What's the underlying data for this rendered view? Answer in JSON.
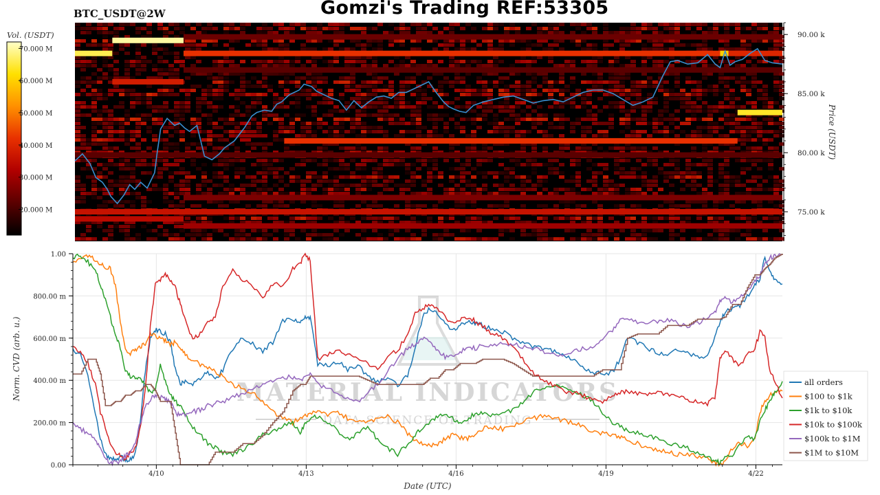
{
  "header": {
    "pair": "BTC_USDT@2W",
    "title": "Gomzi's Trading REF:53305"
  },
  "colors": {
    "background": "#ffffff",
    "heatmap_bg": "#000000",
    "price_line": "#3a8fd0",
    "grid": "#e6e6e6"
  },
  "chart_data": [
    {
      "type": "heatmap",
      "name": "order-book-heatmap",
      "ylabel": "Price (USDT)",
      "yticks": [
        "75.00 k",
        "80.00 k",
        "85.00 k",
        "90.00 k"
      ],
      "ylim": [
        72500,
        91000
      ],
      "xlim": [
        0,
        14.2
      ],
      "colorbar": {
        "label": "Vol. (USDT)",
        "ticks": [
          "20.000 M",
          "30.000 M",
          "40.000 M",
          "50.000 M",
          "60.000 M",
          "70.000 M"
        ],
        "range_millions": [
          12,
          72
        ],
        "colors": [
          "#000000",
          "#5a0000",
          "#b00000",
          "#e83000",
          "#ff9000",
          "#ffe000",
          "#ffffc8"
        ]
      },
      "walls": [
        {
          "price": 88400,
          "x0": 0.0,
          "x1": 0.75,
          "vol": 66
        },
        {
          "price": 89500,
          "x0": 0.75,
          "x1": 2.18,
          "vol": 70
        },
        {
          "price": 88400,
          "x0": 2.18,
          "x1": 12.95,
          "vol": 42
        },
        {
          "price": 88400,
          "x0": 12.95,
          "x1": 13.12,
          "vol": 60
        },
        {
          "price": 88400,
          "x0": 13.12,
          "x1": 14.2,
          "vol": 40
        },
        {
          "price": 86000,
          "x0": 0.75,
          "x1": 2.18,
          "vol": 38
        },
        {
          "price": 81000,
          "x0": 4.2,
          "x1": 13.3,
          "vol": 42
        },
        {
          "price": 83400,
          "x0": 13.3,
          "x1": 14.2,
          "vol": 64
        },
        {
          "price": 75000,
          "x0": 0.0,
          "x1": 14.2,
          "vol": 36
        },
        {
          "price": 73800,
          "x0": 2.18,
          "x1": 14.2,
          "vol": 30
        },
        {
          "price": 76200,
          "x0": 2.18,
          "x1": 14.2,
          "vol": 26
        },
        {
          "price": 89800,
          "x0": 2.18,
          "x1": 14.2,
          "vol": 24
        },
        {
          "price": 79800,
          "x0": 0.0,
          "x1": 14.2,
          "vol": 22
        },
        {
          "price": 87000,
          "x0": 2.18,
          "x1": 14.2,
          "vol": 22
        },
        {
          "price": 74400,
          "x0": 0.0,
          "x1": 2.18,
          "vol": 34
        }
      ],
      "price_series": {
        "name": "price",
        "x": [
          0,
          0.15,
          0.3,
          0.42,
          0.55,
          0.65,
          0.72,
          0.85,
          0.98,
          1.1,
          1.2,
          1.32,
          1.45,
          1.6,
          1.65,
          1.72,
          1.85,
          2.0,
          2.1,
          2.2,
          2.3,
          2.45,
          2.6,
          2.75,
          2.9,
          3.0,
          3.2,
          3.4,
          3.55,
          3.65,
          3.8,
          3.95,
          4.05,
          4.15,
          4.3,
          4.5,
          4.6,
          4.75,
          4.85,
          4.95,
          5.15,
          5.3,
          5.45,
          5.6,
          5.75,
          5.9,
          6.05,
          6.2,
          6.35,
          6.5,
          6.65,
          6.8,
          6.95,
          7.1,
          7.25,
          7.4,
          7.5,
          7.6,
          7.72,
          7.85,
          8.0,
          8.2,
          8.4,
          8.6,
          8.8,
          9.0,
          9.2,
          9.4,
          9.6,
          9.8,
          10.0,
          10.2,
          10.4,
          10.6,
          10.8,
          11.0,
          11.2,
          11.4,
          11.6,
          11.8,
          11.95,
          12.1,
          12.3,
          12.5,
          12.7,
          12.85,
          12.95,
          13.05,
          13.15,
          13.25,
          13.4,
          13.55,
          13.7,
          13.85,
          14.0,
          14.2
        ],
        "y": [
          79300,
          79900,
          79100,
          77900,
          77500,
          76900,
          76300,
          75700,
          76400,
          77300,
          76900,
          77500,
          77000,
          78300,
          80000,
          82000,
          82900,
          82300,
          82500,
          82100,
          81800,
          82300,
          79700,
          79400,
          79900,
          80400,
          81000,
          82100,
          83100,
          83400,
          83600,
          83500,
          84100,
          84300,
          84900,
          85300,
          85800,
          85600,
          85200,
          85000,
          84600,
          84400,
          83600,
          84400,
          83800,
          84300,
          84700,
          84800,
          84600,
          85100,
          85100,
          85400,
          85700,
          86000,
          85100,
          84300,
          83900,
          83700,
          83500,
          83400,
          84000,
          84300,
          84500,
          84700,
          84800,
          84500,
          84200,
          84400,
          84500,
          84300,
          84700,
          85100,
          85300,
          85300,
          85000,
          84500,
          84000,
          84300,
          84700,
          86500,
          87700,
          87800,
          87500,
          87600,
          88300,
          87500,
          87200,
          88600,
          87400,
          87700,
          87900,
          88400,
          88800,
          87800,
          87600,
          87500,
          88100,
          88600,
          88700
        ]
      }
    },
    {
      "type": "line",
      "name": "normalized-cvd",
      "xlabel": "Date (UTC)",
      "ylabel": "Norm. CVD (arb. u.)",
      "ylim": [
        0,
        1
      ],
      "xlim": [
        0,
        14.2
      ],
      "xticks": [
        {
          "x": 1.67,
          "label": "4/10"
        },
        {
          "x": 4.67,
          "label": "4/13"
        },
        {
          "x": 7.67,
          "label": "4/16"
        },
        {
          "x": 10.67,
          "label": "4/19"
        },
        {
          "x": 13.67,
          "label": "4/22"
        }
      ],
      "yticks": [
        "0.00",
        "200.00 m",
        "400.00 m",
        "600.00 m",
        "800.00 m",
        "1.00"
      ],
      "grid": true,
      "legend_position": "bottom-right",
      "x": [
        0,
        0.15,
        0.3,
        0.45,
        0.55,
        0.65,
        0.75,
        0.85,
        0.95,
        1.05,
        1.15,
        1.25,
        1.35,
        1.45,
        1.55,
        1.65,
        1.75,
        1.85,
        1.95,
        2.05,
        2.15,
        2.25,
        2.4,
        2.55,
        2.7,
        2.85,
        3.0,
        3.2,
        3.4,
        3.6,
        3.8,
        4.0,
        4.2,
        4.4,
        4.55,
        4.65,
        4.75,
        4.9,
        5.1,
        5.3,
        5.5,
        5.7,
        5.9,
        6.1,
        6.3,
        6.5,
        6.7,
        6.85,
        7.0,
        7.15,
        7.3,
        7.45,
        7.6,
        7.75,
        7.9,
        8.05,
        8.2,
        8.4,
        8.6,
        8.8,
        9.0,
        9.2,
        9.4,
        9.6,
        9.8,
        10.0,
        10.2,
        10.4,
        10.6,
        10.8,
        10.95,
        11.1,
        11.3,
        11.5,
        11.7,
        11.9,
        12.1,
        12.3,
        12.5,
        12.7,
        12.85,
        12.95,
        13.05,
        13.2,
        13.35,
        13.5,
        13.65,
        13.75,
        13.85,
        13.95,
        14.05,
        14.2
      ],
      "series": [
        {
          "name": "all orders",
          "color": "#1f77b4",
          "values": [
            0.55,
            0.52,
            0.42,
            0.25,
            0.12,
            0.05,
            0.03,
            0.02,
            0.04,
            0.02,
            0.03,
            0.05,
            0.2,
            0.45,
            0.6,
            0.64,
            0.63,
            0.62,
            0.58,
            0.45,
            0.38,
            0.4,
            0.38,
            0.41,
            0.44,
            0.4,
            0.45,
            0.55,
            0.6,
            0.57,
            0.54,
            0.58,
            0.68,
            0.69,
            0.67,
            0.7,
            0.7,
            0.48,
            0.47,
            0.49,
            0.45,
            0.47,
            0.42,
            0.39,
            0.41,
            0.38,
            0.42,
            0.56,
            0.7,
            0.74,
            0.72,
            0.67,
            0.64,
            0.66,
            0.68,
            0.67,
            0.66,
            0.64,
            0.63,
            0.6,
            0.58,
            0.56,
            0.55,
            0.54,
            0.53,
            0.5,
            0.46,
            0.44,
            0.43,
            0.44,
            0.5,
            0.6,
            0.58,
            0.55,
            0.53,
            0.52,
            0.55,
            0.53,
            0.51,
            0.52,
            0.6,
            0.68,
            0.72,
            0.74,
            0.75,
            0.8,
            0.85,
            0.88,
            0.98,
            0.92,
            0.87,
            0.85
          ]
        },
        {
          "name": "$100 to $1k",
          "color": "#ff7f0e",
          "values": [
            0.96,
            0.98,
            0.99,
            0.97,
            0.95,
            0.94,
            0.93,
            0.85,
            0.68,
            0.55,
            0.53,
            0.54,
            0.56,
            0.57,
            0.62,
            0.61,
            0.6,
            0.59,
            0.57,
            0.58,
            0.56,
            0.52,
            0.5,
            0.47,
            0.46,
            0.44,
            0.42,
            0.38,
            0.36,
            0.34,
            0.3,
            0.25,
            0.22,
            0.2,
            0.22,
            0.23,
            0.24,
            0.25,
            0.24,
            0.25,
            0.22,
            0.2,
            0.2,
            0.22,
            0.23,
            0.2,
            0.15,
            0.12,
            0.1,
            0.09,
            0.1,
            0.12,
            0.14,
            0.13,
            0.12,
            0.15,
            0.17,
            0.18,
            0.17,
            0.19,
            0.2,
            0.22,
            0.23,
            0.22,
            0.21,
            0.2,
            0.18,
            0.16,
            0.15,
            0.14,
            0.13,
            0.12,
            0.1,
            0.08,
            0.07,
            0.06,
            0.05,
            0.05,
            0.04,
            0.03,
            0.01,
            0.0,
            0.02,
            0.08,
            0.1,
            0.09,
            0.12,
            0.25,
            0.3,
            0.33,
            0.34,
            0.36
          ]
        },
        {
          "name": "$1k to $10k",
          "color": "#2ca02c",
          "values": [
            0.98,
            0.99,
            0.96,
            0.93,
            0.85,
            0.78,
            0.7,
            0.62,
            0.55,
            0.45,
            0.42,
            0.41,
            0.4,
            0.38,
            0.34,
            0.36,
            0.47,
            0.4,
            0.33,
            0.3,
            0.28,
            0.24,
            0.18,
            0.14,
            0.1,
            0.08,
            0.06,
            0.05,
            0.07,
            0.1,
            0.14,
            0.16,
            0.18,
            0.2,
            0.15,
            0.2,
            0.22,
            0.23,
            0.2,
            0.16,
            0.12,
            0.15,
            0.18,
            0.12,
            0.08,
            0.05,
            0.1,
            0.14,
            0.18,
            0.2,
            0.23,
            0.24,
            0.22,
            0.2,
            0.22,
            0.24,
            0.25,
            0.23,
            0.24,
            0.26,
            0.3,
            0.34,
            0.36,
            0.38,
            0.37,
            0.35,
            0.33,
            0.3,
            0.25,
            0.2,
            0.18,
            0.16,
            0.15,
            0.14,
            0.12,
            0.1,
            0.09,
            0.08,
            0.06,
            0.04,
            0.02,
            0.01,
            0.03,
            0.04,
            0.1,
            0.14,
            0.12,
            0.2,
            0.26,
            0.3,
            0.34,
            0.39
          ]
        },
        {
          "name": "$10k to $100k",
          "color": "#d62728",
          "values": [
            0.56,
            0.53,
            0.48,
            0.38,
            0.25,
            0.18,
            0.1,
            0.06,
            0.04,
            0.03,
            0.06,
            0.08,
            0.18,
            0.35,
            0.65,
            0.85,
            0.88,
            0.9,
            0.87,
            0.84,
            0.76,
            0.68,
            0.6,
            0.62,
            0.68,
            0.7,
            0.84,
            0.92,
            0.88,
            0.85,
            0.78,
            0.86,
            0.84,
            0.93,
            0.96,
            0.99,
            0.97,
            0.5,
            0.52,
            0.55,
            0.52,
            0.5,
            0.48,
            0.45,
            0.52,
            0.54,
            0.62,
            0.72,
            0.74,
            0.76,
            0.73,
            0.7,
            0.67,
            0.69,
            0.7,
            0.68,
            0.66,
            0.62,
            0.6,
            0.56,
            0.5,
            0.44,
            0.4,
            0.38,
            0.35,
            0.34,
            0.33,
            0.31,
            0.3,
            0.32,
            0.34,
            0.35,
            0.34,
            0.33,
            0.34,
            0.33,
            0.32,
            0.31,
            0.3,
            0.29,
            0.32,
            0.5,
            0.54,
            0.5,
            0.47,
            0.52,
            0.55,
            0.63,
            0.6,
            0.44,
            0.4,
            0.31
          ]
        },
        {
          "name": "$100k to $1M",
          "color": "#9467bd",
          "values": [
            0.2,
            0.17,
            0.15,
            0.12,
            0.08,
            0.03,
            0.01,
            0.01,
            0.02,
            0.04,
            0.06,
            0.1,
            0.2,
            0.27,
            0.31,
            0.33,
            0.32,
            0.31,
            0.3,
            0.25,
            0.23,
            0.24,
            0.25,
            0.26,
            0.28,
            0.29,
            0.3,
            0.32,
            0.34,
            0.36,
            0.38,
            0.4,
            0.42,
            0.41,
            0.4,
            0.42,
            0.43,
            0.38,
            0.36,
            0.33,
            0.31,
            0.3,
            0.34,
            0.38,
            0.44,
            0.5,
            0.55,
            0.57,
            0.6,
            0.58,
            0.54,
            0.51,
            0.52,
            0.53,
            0.56,
            0.55,
            0.57,
            0.56,
            0.58,
            0.57,
            0.56,
            0.55,
            0.54,
            0.53,
            0.52,
            0.54,
            0.55,
            0.56,
            0.6,
            0.64,
            0.68,
            0.7,
            0.68,
            0.67,
            0.68,
            0.69,
            0.67,
            0.66,
            0.67,
            0.7,
            0.72,
            0.78,
            0.8,
            0.77,
            0.79,
            0.82,
            0.87,
            0.9,
            0.95,
            0.98,
            0.99,
            0.99
          ]
        },
        {
          "name": "$1M to $10M",
          "color": "#8c564b",
          "values": [
            0.43,
            0.43,
            0.5,
            0.5,
            0.43,
            0.28,
            0.28,
            0.3,
            0.3,
            0.33,
            0.33,
            0.35,
            0.35,
            0.38,
            0.38,
            0.35,
            0.3,
            0.3,
            0.3,
            0.15,
            0.0,
            0.0,
            0.0,
            0.0,
            0.0,
            0.06,
            0.06,
            0.06,
            0.1,
            0.1,
            0.14,
            0.2,
            0.25,
            0.35,
            0.38,
            0.38,
            0.42,
            0.42,
            0.42,
            0.42,
            0.42,
            0.42,
            0.4,
            0.38,
            0.38,
            0.38,
            0.38,
            0.38,
            0.38,
            0.41,
            0.41,
            0.45,
            0.45,
            0.48,
            0.48,
            0.48,
            0.5,
            0.5,
            0.5,
            0.48,
            0.45,
            0.42,
            0.42,
            0.42,
            0.42,
            0.42,
            0.42,
            0.42,
            0.45,
            0.45,
            0.45,
            0.6,
            0.62,
            0.62,
            0.62,
            0.66,
            0.66,
            0.66,
            0.69,
            0.69,
            0.69,
            0.69,
            0.7,
            0.76,
            0.76,
            0.84,
            0.9,
            0.9,
            0.93,
            0.95,
            0.98,
            1.0
          ]
        }
      ]
    }
  ],
  "watermark": {
    "line1": "MATERIAL INDICATORS",
    "line2": "DATA SCIENCE OF TRADING"
  }
}
